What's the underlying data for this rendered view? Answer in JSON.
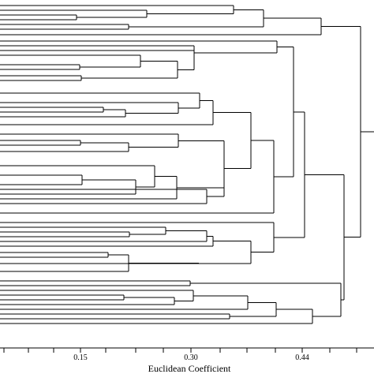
{
  "chart_data": {
    "type": "dendrogram",
    "x_axis": {
      "label": "Euclidean Coefficient",
      "ticks": [
        "0.15",
        "0.30",
        "0.44"
      ],
      "tick_values": [
        0.15,
        0.3,
        0.44
      ]
    },
    "grid": false,
    "legend": "none"
  }
}
